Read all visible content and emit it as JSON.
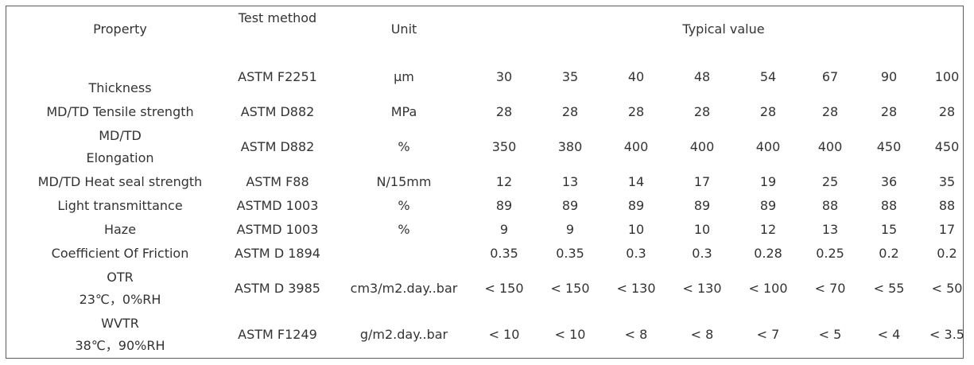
{
  "headers": {
    "property": "Property",
    "test_method": "Test method",
    "unit": "Unit",
    "typical_value": "Typical value"
  },
  "rows": [
    {
      "property_lines": [
        "Thickness"
      ],
      "method": "ASTM F2251",
      "unit": "μm",
      "values": [
        "30",
        "35",
        "40",
        "48",
        "54",
        "67",
        "90",
        "100"
      ]
    },
    {
      "property_lines": [
        "MD/TD   Tensile strength"
      ],
      "method": "ASTM D882",
      "unit": "MPa",
      "values": [
        "28",
        "28",
        "28",
        "28",
        "28",
        "28",
        "28",
        "28"
      ]
    },
    {
      "property_lines": [
        "MD/TD",
        "Elongation"
      ],
      "method": "ASTM D882",
      "unit": "%",
      "values": [
        "350",
        "380",
        "400",
        "400",
        "400",
        "400",
        "450",
        "450"
      ]
    },
    {
      "property_lines": [
        "MD/TD  Heat seal strength"
      ],
      "method": "ASTM F88",
      "unit": "N/15mm",
      "values": [
        "12",
        "13",
        "14",
        "17",
        "19",
        "25",
        "36",
        "35"
      ]
    },
    {
      "property_lines": [
        "Light transmittance"
      ],
      "method": "ASTMD 1003",
      "unit": "%",
      "values": [
        "89",
        "89",
        "89",
        "89",
        "89",
        "88",
        "88",
        "88"
      ]
    },
    {
      "property_lines": [
        "Haze"
      ],
      "method": "ASTMD 1003",
      "unit": "%",
      "values": [
        "9",
        "9",
        "10",
        "10",
        "12",
        "13",
        "15",
        "17"
      ]
    },
    {
      "property_lines": [
        "Coefficient Of Friction"
      ],
      "method": "ASTM D 1894",
      "unit": "",
      "values": [
        "0.35",
        "0.35",
        "0.3",
        "0.3",
        "0.28",
        "0.25",
        "0.2",
        "0.2"
      ]
    },
    {
      "property_lines": [
        "OTR",
        "23℃，0%RH"
      ],
      "method": "ASTM D 3985",
      "unit": "cm3/m2.day..bar",
      "values": [
        "< 150",
        "< 150",
        "< 130",
        "< 130",
        "< 100",
        "< 70",
        "< 55",
        "< 50"
      ]
    },
    {
      "property_lines": [
        "WVTR",
        "38℃，90%RH"
      ],
      "method": "ASTM F1249",
      "unit": "g/m2.day..bar",
      "values": [
        "< 10",
        "< 10",
        "< 8",
        "< 8",
        "< 7",
        "< 5",
        "< 4",
        "< 3.5"
      ]
    }
  ]
}
